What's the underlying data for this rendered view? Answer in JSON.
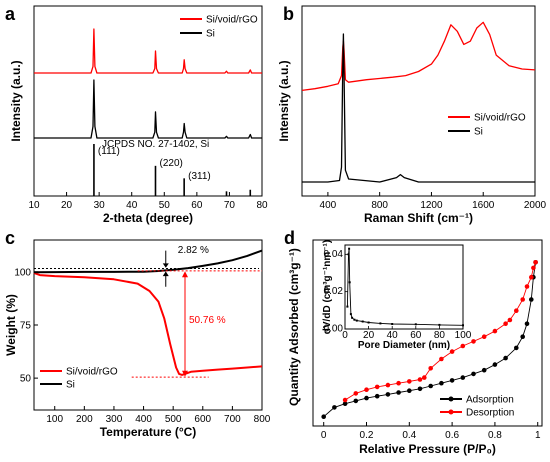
{
  "colors": {
    "red": "#ff0000",
    "black": "#000000"
  },
  "chart_data": [
    {
      "panel_label": "a",
      "type": "line",
      "xlabel": "2-theta (degree)",
      "ylabel": "Intensity (a.u.)",
      "xlim": [
        10,
        80
      ],
      "xticks": [
        10,
        20,
        30,
        40,
        50,
        60,
        70,
        80
      ],
      "legend": "top-right",
      "series": [
        {
          "name": "Si/void/rGO",
          "color": "#ff0000",
          "x": [
            10,
            27.5,
            28.1,
            28.4,
            28.7,
            29.3,
            46.5,
            47.1,
            47.3,
            47.6,
            48.2,
            55.5,
            55.9,
            56.1,
            56.4,
            56.9,
            68.6,
            69.1,
            69.5,
            75.9,
            76.4,
            76.8,
            80
          ],
          "y": [
            0,
            0,
            0.15,
            1.0,
            0.15,
            0,
            0,
            0.1,
            0.5,
            0.1,
            0,
            0,
            0.1,
            0.3,
            0.1,
            0,
            0,
            0.04,
            0,
            0,
            0.07,
            0,
            0
          ]
        },
        {
          "name": "Si",
          "color": "#000000",
          "x": [
            10,
            27.5,
            28.1,
            28.4,
            28.7,
            29.3,
            46.5,
            47.1,
            47.3,
            47.6,
            48.2,
            55.5,
            55.9,
            56.1,
            56.4,
            56.9,
            68.6,
            69.1,
            69.5,
            75.9,
            76.4,
            76.8,
            80
          ],
          "y": [
            0,
            0,
            0.2,
            1.0,
            0.2,
            0,
            0,
            0.1,
            0.45,
            0.1,
            0,
            0,
            0.1,
            0.25,
            0.1,
            0,
            0,
            0.03,
            0,
            0,
            0.06,
            0,
            0
          ]
        }
      ],
      "reference_lines": [
        {
          "x": 28.4,
          "label": "(111)",
          "rel_height": 1.0
        },
        {
          "x": 47.3,
          "label": "(220)",
          "rel_height": 0.58
        },
        {
          "x": 56.1,
          "label": "(311)",
          "rel_height": 0.34
        },
        {
          "x": 69.1,
          "label": "",
          "rel_height": 0.09
        },
        {
          "x": 76.4,
          "label": "",
          "rel_height": 0.12
        }
      ],
      "reference_label": "JCPDS NO. 27-1402, Si"
    },
    {
      "panel_label": "b",
      "type": "line",
      "xlabel": "Raman Shift (cm⁻¹)",
      "ylabel": "Intensity (a.u.)",
      "xlim": [
        200,
        2000
      ],
      "xticks": [
        400,
        800,
        1200,
        1600,
        2000
      ],
      "legend": "center-right",
      "series": [
        {
          "name": "Si/void/rGO",
          "color": "#ff0000",
          "x": [
            200,
            300,
            400,
            480,
            505,
            515,
            520,
            525,
            535,
            560,
            700,
            900,
            1000,
            1100,
            1200,
            1250,
            1300,
            1350,
            1400,
            1450,
            1500,
            1550,
            1600,
            1650,
            1700,
            1800,
            1900,
            2000
          ],
          "y": [
            0.02,
            0.04,
            0.07,
            0.1,
            0.2,
            0.55,
            0.62,
            0.5,
            0.15,
            0.12,
            0.15,
            0.18,
            0.2,
            0.25,
            0.34,
            0.45,
            0.62,
            0.82,
            0.74,
            0.58,
            0.62,
            0.78,
            0.85,
            0.7,
            0.45,
            0.32,
            0.28,
            0.27
          ]
        },
        {
          "name": "Si",
          "color": "#000000",
          "x": [
            200,
            400,
            490,
            505,
            515,
            520,
            525,
            535,
            560,
            800,
            930,
            960,
            990,
            1100,
            1400,
            1800,
            2000
          ],
          "y": [
            0.0,
            0.0,
            0.01,
            0.1,
            0.8,
            1.0,
            0.7,
            0.08,
            0.02,
            0.0,
            0.03,
            0.05,
            0.03,
            0.0,
            0.0,
            0.0,
            0.0
          ]
        }
      ]
    },
    {
      "panel_label": "c",
      "type": "line",
      "xlabel": "Temperature (°C)",
      "ylabel": "Weight (%)",
      "xlim": [
        30,
        800
      ],
      "ylim": [
        35,
        115
      ],
      "xticks": [
        100,
        200,
        300,
        400,
        500,
        600,
        700,
        800
      ],
      "yticks": [
        50,
        75,
        100
      ],
      "legend": "bottom-left",
      "series": [
        {
          "name": "Si/void/rGO",
          "color": "#ff0000",
          "x": [
            30,
            50,
            100,
            200,
            300,
            380,
            420,
            450,
            470,
            490,
            510,
            520,
            530,
            540,
            560,
            600,
            650,
            700,
            750,
            800
          ],
          "y": [
            99.5,
            98.5,
            98,
            97.5,
            96.5,
            94.5,
            91,
            86,
            78,
            66,
            55,
            52,
            51.5,
            52,
            53,
            53.5,
            54,
            54.5,
            55,
            55.5
          ]
        },
        {
          "name": "Si",
          "color": "#000000",
          "x": [
            30,
            100,
            200,
            300,
            400,
            450,
            500,
            550,
            600,
            650,
            700,
            750,
            800
          ],
          "y": [
            99.8,
            99.9,
            100,
            100,
            100.1,
            100.4,
            101,
            101.8,
            102.8,
            104,
            105.5,
            107.5,
            110
          ]
        }
      ],
      "annotations": [
        "2.82 %",
        "50.76 %"
      ]
    },
    {
      "panel_label": "d",
      "type": "line",
      "xlabel": "Relative Pressure (P/P₀)",
      "ylabel": "Quantity Adsorbed (cm³g⁻¹)",
      "xlim": [
        -0.05,
        1.02
      ],
      "ylim": [
        0,
        100
      ],
      "xticks": [
        0.0,
        0.2,
        0.4,
        0.6,
        0.8,
        1.0
      ],
      "legend": "bottom-right",
      "series": [
        {
          "name": "Adsorption",
          "color": "#000000",
          "x": [
            0.0,
            0.05,
            0.1,
            0.15,
            0.2,
            0.25,
            0.3,
            0.35,
            0.4,
            0.45,
            0.5,
            0.55,
            0.6,
            0.65,
            0.7,
            0.75,
            0.8,
            0.85,
            0.9,
            0.93,
            0.95,
            0.97,
            0.98,
            0.99
          ],
          "y": [
            5,
            10,
            12,
            13.5,
            15,
            16,
            17,
            18,
            19,
            20,
            21.5,
            23,
            24.5,
            26,
            28,
            30,
            33,
            36.5,
            42,
            48,
            55,
            68,
            80,
            88
          ]
        },
        {
          "name": "Desorption",
          "color": "#ff0000",
          "x": [
            0.99,
            0.98,
            0.97,
            0.95,
            0.93,
            0.9,
            0.87,
            0.85,
            0.8,
            0.75,
            0.7,
            0.65,
            0.6,
            0.55,
            0.5,
            0.47,
            0.45,
            0.4,
            0.35,
            0.3,
            0.25,
            0.2,
            0.15,
            0.1
          ],
          "y": [
            88,
            85,
            80,
            75,
            68,
            62,
            57,
            55,
            51,
            48,
            45.5,
            43,
            40,
            36,
            31,
            26,
            25,
            24,
            23,
            22,
            21,
            19.5,
            17.5,
            14
          ]
        }
      ],
      "inset": {
        "type": "line",
        "xlabel": "Pore Diameter (nm)",
        "ylabel": "dV/dD (cm³g⁻¹nm⁻¹)",
        "xlim": [
          0,
          100
        ],
        "ylim": [
          0,
          0.045
        ],
        "xticks": [
          0,
          20,
          40,
          60,
          80,
          100
        ],
        "yticks": [
          0.0,
          0.02,
          0.04
        ],
        "ytick_labels": [
          "0.00",
          "0.02",
          "0.04"
        ],
        "series": [
          {
            "color": "#000000",
            "x": [
              2,
              3,
              3.5,
              4,
              5,
              6,
              8,
              10,
              15,
              20,
              30,
              40,
              60,
              80,
              100
            ],
            "y": [
              0.012,
              0.04,
              0.043,
              0.025,
              0.008,
              0.006,
              0.005,
              0.0045,
              0.004,
              0.0035,
              0.003,
              0.0027,
              0.0025,
              0.0022,
              0.002
            ]
          }
        ]
      }
    }
  ]
}
